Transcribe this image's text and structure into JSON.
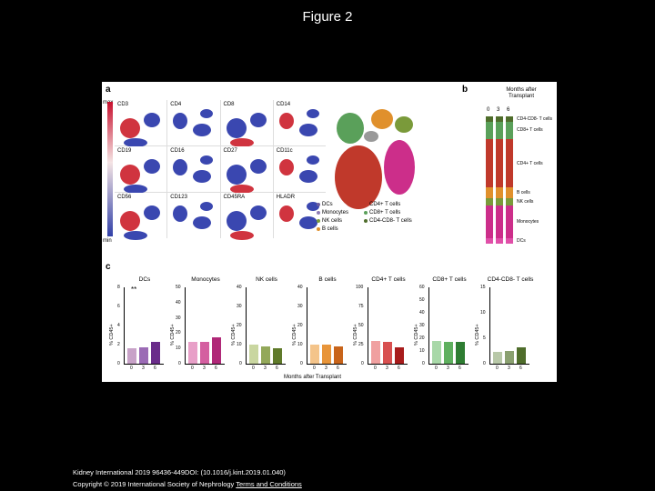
{
  "slide": {
    "title": "Figure 2"
  },
  "panel_a": {
    "letter": "a",
    "colorbar_max": "max",
    "colorbar_min": "min",
    "markers": [
      "CD3",
      "CD4",
      "CD8",
      "CD14",
      "CD19",
      "CD16",
      "CD27",
      "CD11c",
      "CD56",
      "CD123",
      "CD45RA",
      "HLADR"
    ],
    "legend": [
      {
        "name": "DCs",
        "color": "#6b5c9e"
      },
      {
        "name": "Monocytes",
        "color": "#8e7cb5"
      },
      {
        "name": "NK cells",
        "color": "#7a9a3a"
      },
      {
        "name": "B cells",
        "color": "#e0902c"
      },
      {
        "name": "CD4+ T cells",
        "color": "#c0392b"
      },
      {
        "name": "CD8+ T cells",
        "color": "#5aa05a"
      },
      {
        "name": "CD4-CD8- T cells",
        "color": "#4f6d2b"
      }
    ]
  },
  "panel_b": {
    "letter": "b",
    "header": "Months after Transplant",
    "ticks": [
      "0",
      "3",
      "6"
    ],
    "labels": [
      "CD4-CD8- T cells",
      "CD8+ T cells",
      "CD4+ T cells",
      "B cells",
      "NK cells",
      "Monocytes",
      "DCs"
    ],
    "segments": [
      {
        "name": "CD4-CD8- T cells",
        "color": "#4f6d2b",
        "pct": 4
      },
      {
        "name": "CD8+ T cells",
        "color": "#5aa05a",
        "pct": 14
      },
      {
        "name": "CD4+ T cells",
        "color": "#c0392b",
        "pct": 38
      },
      {
        "name": "B cells",
        "color": "#e0902c",
        "pct": 8
      },
      {
        "name": "NK cells",
        "color": "#7a9a3a",
        "pct": 6
      },
      {
        "name": "Monocytes",
        "color": "#cc2e8a",
        "pct": 26
      },
      {
        "name": "DCs",
        "color": "#e04fa8",
        "pct": 4
      }
    ]
  },
  "panel_c": {
    "letter": "c",
    "xlabel": "Months after Transplant",
    "xticks": [
      "0",
      "3",
      "6"
    ],
    "chart_data": [
      {
        "type": "bar",
        "title": "DCs",
        "ylabel": "% CD45+",
        "ylim": [
          0,
          8
        ],
        "yticks": [
          "0",
          "2",
          "4",
          "6",
          "8"
        ],
        "categories": [
          "0",
          "3",
          "6"
        ],
        "values": [
          1.6,
          1.7,
          2.3
        ],
        "colors": [
          "#c8a2c8",
          "#9b6bb5",
          "#6a2c8a"
        ],
        "annotation": "**"
      },
      {
        "type": "bar",
        "title": "Monocytes",
        "ylabel": "% CD45+",
        "ylim": [
          0,
          50
        ],
        "yticks": [
          "0",
          "10",
          "20",
          "30",
          "40",
          "50"
        ],
        "categories": [
          "0",
          "3",
          "6"
        ],
        "values": [
          14,
          14,
          17
        ],
        "colors": [
          "#e8a0c8",
          "#d45fa0",
          "#b02878"
        ]
      },
      {
        "type": "bar",
        "title": "NK cells",
        "ylabel": "% CD45+",
        "ylim": [
          0,
          40
        ],
        "yticks": [
          "0",
          "10",
          "20",
          "30",
          "40"
        ],
        "categories": [
          "0",
          "3",
          "6"
        ],
        "values": [
          10,
          9,
          8
        ],
        "colors": [
          "#c9d6a0",
          "#93a85a",
          "#5f7a2a"
        ]
      },
      {
        "type": "bar",
        "title": "B cells",
        "ylabel": "% CD45+",
        "ylim": [
          0,
          40
        ],
        "yticks": [
          "0",
          "10",
          "20",
          "30",
          "40"
        ],
        "categories": [
          "0",
          "3",
          "6"
        ],
        "values": [
          10,
          10,
          9
        ],
        "colors": [
          "#f4c48a",
          "#e8953a",
          "#c8641a"
        ]
      },
      {
        "type": "bar",
        "title": "CD4+ T cells",
        "ylabel": "% CD45+",
        "ylim": [
          0,
          100
        ],
        "yticks": [
          "0",
          "25",
          "50",
          "75",
          "100"
        ],
        "categories": [
          "0",
          "3",
          "6"
        ],
        "values": [
          30,
          28,
          22
        ],
        "colors": [
          "#f0a0a0",
          "#d85050",
          "#a81c1c"
        ]
      },
      {
        "type": "bar",
        "title": "CD8+ T cells",
        "ylabel": "% CD45+",
        "ylim": [
          0,
          60
        ],
        "yticks": [
          "0",
          "10",
          "20",
          "30",
          "40",
          "50",
          "60"
        ],
        "categories": [
          "0",
          "3",
          "6"
        ],
        "values": [
          18,
          17,
          17
        ],
        "colors": [
          "#a8d8a8",
          "#5fb05f",
          "#2e7d32"
        ]
      },
      {
        "type": "bar",
        "title": "CD4-CD8- T cells",
        "ylabel": "% CD45+",
        "ylim": [
          0,
          15
        ],
        "yticks": [
          "0",
          "5",
          "10",
          "15"
        ],
        "categories": [
          "0",
          "3",
          "6"
        ],
        "values": [
          2.4,
          2.5,
          3.2
        ],
        "colors": [
          "#b8c8a8",
          "#8aa070",
          "#4f6d2b"
        ]
      }
    ]
  },
  "footer": {
    "citation": "Kidney International 2019 96436-449DOI: (10.1016/j.kint.2019.01.040)",
    "copyright": "Copyright © 2019 International Society of Nephrology",
    "link": "Terms and Conditions"
  }
}
